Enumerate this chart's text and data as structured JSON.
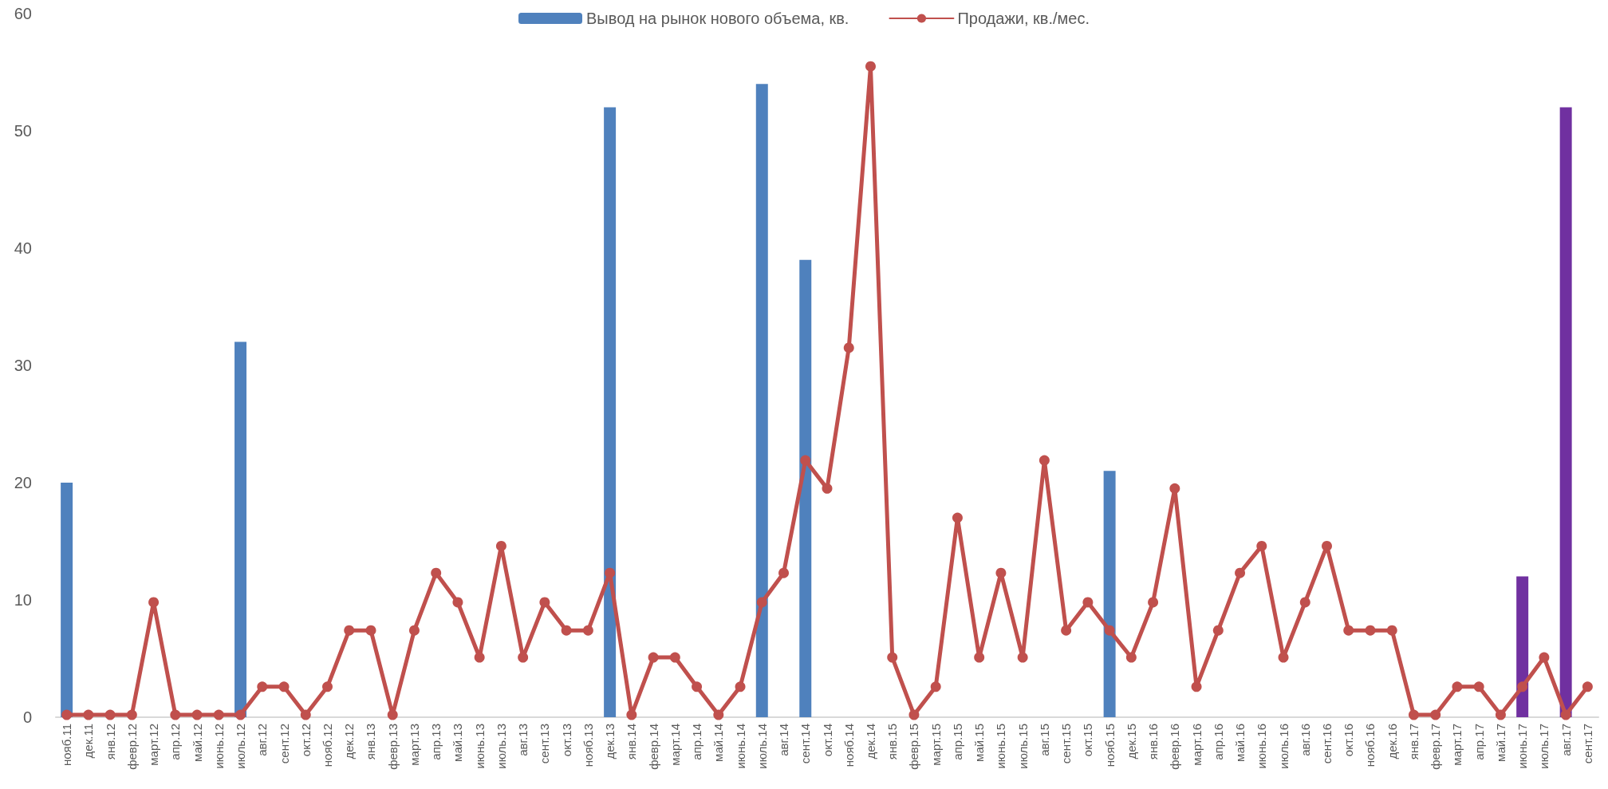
{
  "chart_data": {
    "type": "bar",
    "categories": [
      "нояб.11",
      "дек.11",
      "янв.12",
      "февр.12",
      "март.12",
      "апр.12",
      "май.12",
      "июнь.12",
      "июль.12",
      "авг.12",
      "сент.12",
      "окт.12",
      "нояб.12",
      "дек.12",
      "янв.13",
      "февр.13",
      "март.13",
      "апр.13",
      "май.13",
      "июнь.13",
      "июль.13",
      "авг.13",
      "сент.13",
      "окт.13",
      "нояб.13",
      "дек.13",
      "янв.14",
      "февр.14",
      "март.14",
      "апр.14",
      "май.14",
      "июнь.14",
      "июль.14",
      "авг.14",
      "сент.14",
      "окт.14",
      "нояб.14",
      "дек.14",
      "янв.15",
      "февр.15",
      "март.15",
      "апр.15",
      "май.15",
      "июнь.15",
      "июль.15",
      "авг.15",
      "сент.15",
      "окт.15",
      "нояб.15",
      "дек.15",
      "янв.16",
      "февр.16",
      "март.16",
      "апр.16",
      "май.16",
      "июнь.16",
      "июль.16",
      "авг.16",
      "сент.16",
      "окт.16",
      "нояб.16",
      "дек.16",
      "янв.17",
      "февр.17",
      "март.17",
      "апр.17",
      "май.17",
      "июнь.17",
      "июль.17",
      "авг.17",
      "сент.17"
    ],
    "series": [
      {
        "name": "Вывод на рынок нового объема, кв.",
        "color": "#4f81bd",
        "values": [
          20,
          null,
          null,
          null,
          null,
          null,
          null,
          null,
          32,
          null,
          null,
          null,
          null,
          null,
          null,
          null,
          null,
          null,
          null,
          null,
          null,
          null,
          null,
          null,
          null,
          52,
          null,
          null,
          null,
          null,
          null,
          null,
          54,
          null,
          39,
          null,
          null,
          null,
          null,
          null,
          null,
          null,
          null,
          null,
          null,
          null,
          null,
          null,
          21,
          null,
          null,
          null,
          null,
          null,
          null,
          null,
          null,
          null,
          null,
          null,
          null,
          null,
          null,
          null,
          null,
          null,
          null,
          12,
          null,
          52,
          null
        ],
        "colors": [
          "#4f81bd",
          null,
          null,
          null,
          null,
          null,
          null,
          null,
          "#4f81bd",
          null,
          null,
          null,
          null,
          null,
          null,
          null,
          null,
          null,
          null,
          null,
          null,
          null,
          null,
          null,
          null,
          "#4f81bd",
          null,
          null,
          null,
          null,
          null,
          null,
          "#4f81bd",
          null,
          "#4f81bd",
          null,
          null,
          null,
          null,
          null,
          null,
          null,
          null,
          null,
          null,
          null,
          null,
          null,
          "#4f81bd",
          null,
          null,
          null,
          null,
          null,
          null,
          null,
          null,
          null,
          null,
          null,
          null,
          null,
          null,
          null,
          null,
          null,
          null,
          "#7030a0",
          null,
          "#7030a0",
          null
        ]
      },
      {
        "name": "Продажи, кв./мес.",
        "type": "line",
        "color": "#c0504d",
        "marker": "circle",
        "line_style": "solid",
        "values": [
          0.2,
          0.2,
          0.2,
          0.2,
          9.8,
          0.2,
          0.2,
          0.2,
          0.2,
          2.6,
          2.6,
          0.2,
          2.6,
          7.4,
          7.4,
          0.2,
          7.4,
          12.3,
          9.8,
          5.1,
          14.6,
          5.1,
          9.8,
          7.4,
          7.4,
          12.3,
          0.2,
          5.1,
          5.1,
          2.6,
          0.2,
          2.6,
          9.8,
          12.3,
          21.9,
          19.5,
          31.5,
          55.5,
          5.1,
          0.2,
          2.6,
          17,
          5.1,
          12.3,
          5.1,
          21.9,
          7.4,
          9.8,
          7.4,
          5.1,
          9.8,
          19.5,
          2.6,
          7.4,
          12.3,
          14.6,
          5.1,
          9.8,
          14.6,
          7.4,
          7.4,
          7.4,
          0.2,
          0.2,
          2.6,
          2.6,
          0.2,
          2.6,
          5.1,
          0.2,
          2.6
        ]
      }
    ],
    "ylim": [
      0,
      60
    ],
    "yticks": [
      0,
      10,
      20,
      30,
      40,
      50,
      60
    ],
    "grid": false,
    "legend": "top"
  }
}
